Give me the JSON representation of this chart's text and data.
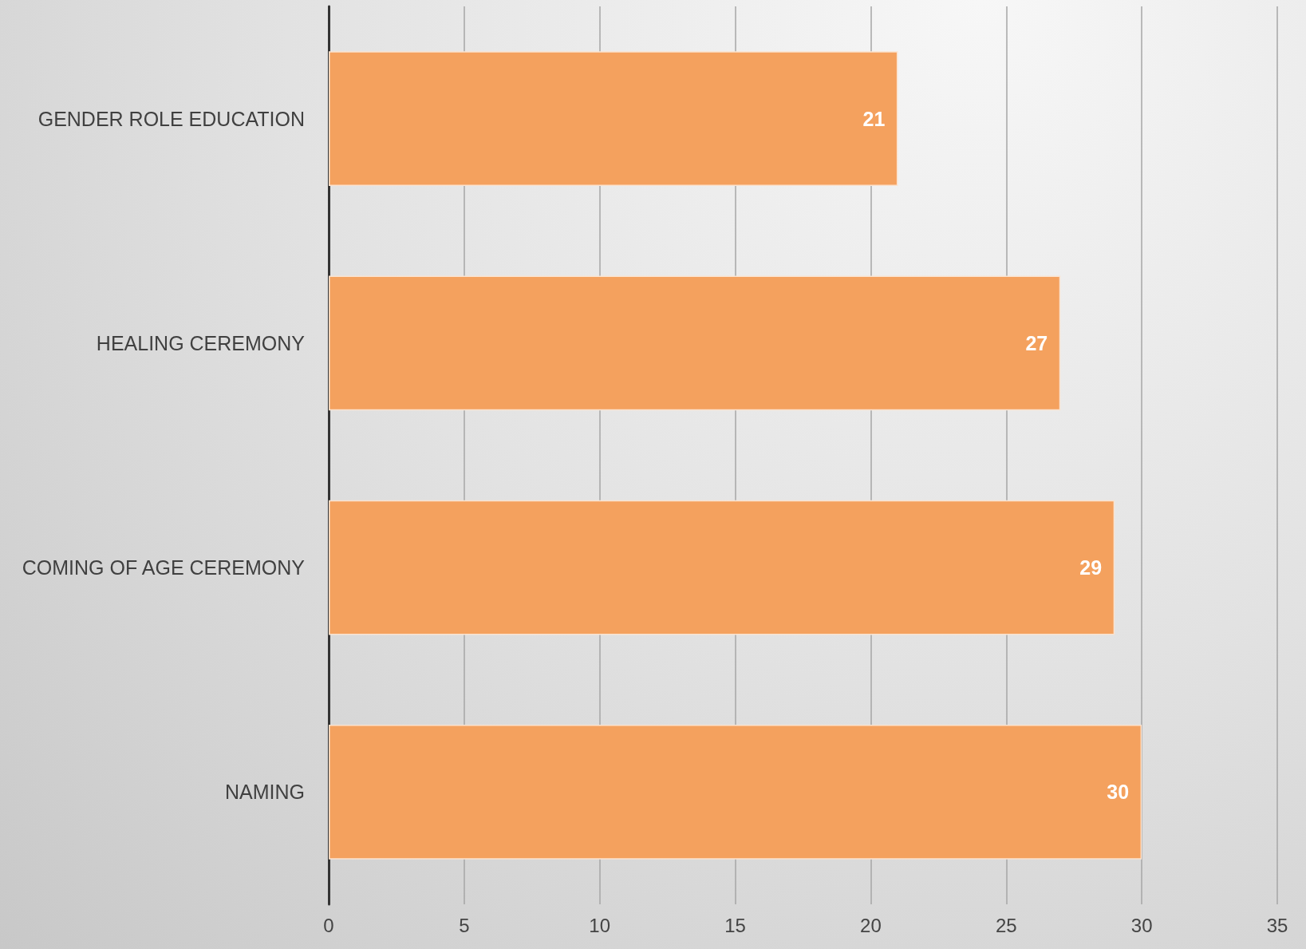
{
  "chart_data": {
    "type": "bar",
    "orientation": "horizontal",
    "categories": [
      "GENDER ROLE EDUCATION",
      "HEALING CEREMONY",
      "COMING OF AGE CEREMONY",
      "NAMING"
    ],
    "values": [
      21,
      27,
      29,
      30
    ],
    "color": "#f4a15e",
    "xlim": [
      0,
      35
    ],
    "xticks": [
      0,
      5,
      10,
      15,
      20,
      25,
      30,
      35
    ],
    "grid": "x",
    "data_labels": true
  }
}
